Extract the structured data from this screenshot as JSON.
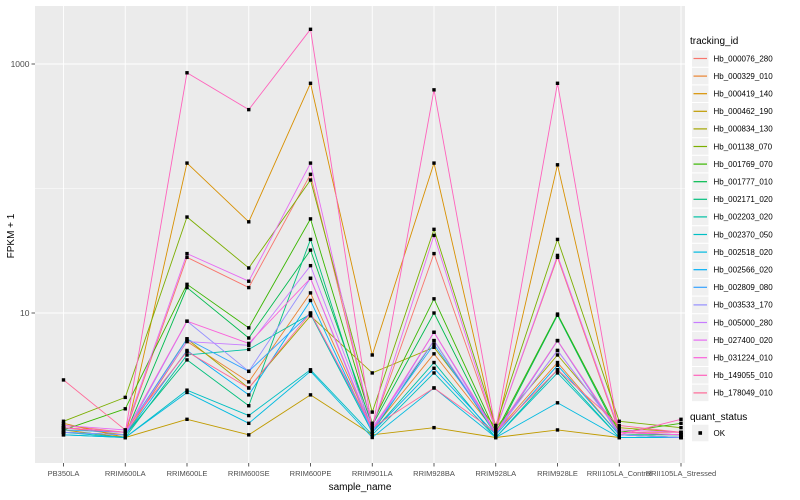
{
  "chart_data": {
    "type": "line",
    "title": "",
    "xlabel": "sample_name",
    "ylabel": "FPKM + 1",
    "y_scale": "log10",
    "ylim": [
      0.93,
      2400
    ],
    "y_major_ticks": [
      {
        "value": 10,
        "label": "10"
      },
      {
        "value": 1000,
        "label": "1000"
      }
    ],
    "y_minor_ticks": [
      1,
      100
    ],
    "grid": true,
    "legend_position": "right",
    "categories": [
      "PB350LA",
      "RRIM600LA",
      "RRIM600LE",
      "RRIM600SE",
      "RRIM600PE",
      "RRIM901LA",
      "RRIM928BA",
      "RRIM928LA",
      "RRIM928LE",
      "RRII105LA_Control",
      "RRII105LA_Stressed"
    ],
    "series": [
      {
        "name": "Hb_000076_280",
        "color": "#F8766D",
        "values": [
          1.25,
          1.1,
          28,
          16,
          130,
          1.2,
          30,
          1.15,
          28,
          1.1,
          1.1
        ]
      },
      {
        "name": "Hb_000329_010",
        "color": "#EA8331",
        "values": [
          1.2,
          1.05,
          5.9,
          2.8,
          14.5,
          1.15,
          4.7,
          1.1,
          4.0,
          1.05,
          1.0
        ]
      },
      {
        "name": "Hb_000419_140",
        "color": "#D89000",
        "values": [
          1.3,
          1.0,
          160,
          54,
          700,
          4.6,
          160,
          1.1,
          155,
          1.1,
          1.05
        ]
      },
      {
        "name": "Hb_000462_190",
        "color": "#C09B00",
        "values": [
          1.15,
          1.0,
          1.4,
          1.05,
          2.2,
          1.05,
          1.2,
          1.0,
          1.15,
          1.0,
          1.0
        ]
      },
      {
        "name": "Hb_000834_130",
        "color": "#A3A500",
        "values": [
          1.2,
          1.1,
          6.2,
          2.5,
          9.5,
          3.3,
          5.3,
          1.2,
          4.6,
          1.2,
          1.1
        ]
      },
      {
        "name": "Hb_001138_070",
        "color": "#7CAE00",
        "values": [
          1.35,
          2.1,
          59,
          23,
          117,
          1.6,
          47,
          1.25,
          39,
          1.35,
          1.2
        ]
      },
      {
        "name": "Hb_001769_070",
        "color": "#39B600",
        "values": [
          1.15,
          1.7,
          17,
          7.6,
          57,
          1.3,
          13,
          1.1,
          9.8,
          1.1,
          1.3
        ]
      },
      {
        "name": "Hb_001777_010",
        "color": "#00BB4E",
        "values": [
          1.1,
          1.05,
          16,
          6.3,
          32,
          1.25,
          10,
          1.05,
          9.6,
          1.05,
          1.05
        ]
      },
      {
        "name": "Hb_002171_020",
        "color": "#00BF7D",
        "values": [
          1.1,
          1.05,
          4.2,
          1.8,
          39,
          1.1,
          6.0,
          1.05,
          6.0,
          1.05,
          1.0
        ]
      },
      {
        "name": "Hb_002203_020",
        "color": "#00C1A3",
        "values": [
          1.05,
          1.0,
          4.6,
          5.1,
          9.8,
          1.1,
          4.0,
          1.0,
          3.5,
          1.0,
          1.0
        ]
      },
      {
        "name": "Hb_002370_050",
        "color": "#00BFC4",
        "values": [
          1.1,
          1.0,
          2.4,
          1.5,
          3.5,
          1.05,
          3.3,
          1.0,
          3.3,
          1.0,
          1.0
        ]
      },
      {
        "name": "Hb_002518_020",
        "color": "#00BAE0",
        "values": [
          1.05,
          1.0,
          2.3,
          1.3,
          3.4,
          1.0,
          2.5,
          1.0,
          1.9,
          1.0,
          1.0
        ]
      },
      {
        "name": "Hb_002566_020",
        "color": "#00B0F6",
        "values": [
          1.1,
          1.05,
          5.0,
          2.2,
          12.6,
          1.1,
          3.6,
          1.05,
          3.8,
          1.05,
          1.0
        ]
      },
      {
        "name": "Hb_002809_080",
        "color": "#35A2FF",
        "values": [
          1.15,
          1.1,
          6.2,
          3.4,
          10,
          1.15,
          5.6,
          1.1,
          5.0,
          1.1,
          1.05
        ]
      },
      {
        "name": "Hb_003533_170",
        "color": "#9590FF",
        "values": [
          1.1,
          1.05,
          8.6,
          3.4,
          19,
          1.1,
          7.0,
          1.05,
          6.0,
          1.05,
          1.0
        ]
      },
      {
        "name": "Hb_005000_280",
        "color": "#C77CFF",
        "values": [
          1.2,
          1.1,
          5.9,
          5.5,
          24,
          1.2,
          6.0,
          1.1,
          5.0,
          1.1,
          1.05
        ]
      },
      {
        "name": "Hb_027400_020",
        "color": "#E76BF3",
        "values": [
          1.25,
          1.15,
          30,
          18,
          160,
          1.2,
          42,
          1.15,
          29,
          1.15,
          1.1
        ]
      },
      {
        "name": "Hb_031224_010",
        "color": "#FA62DB",
        "values": [
          1.2,
          1.1,
          8.6,
          5.7,
          19,
          1.15,
          7.0,
          1.1,
          6.0,
          1.1,
          1.05
        ]
      },
      {
        "name": "Hb_149055_010",
        "color": "#FF62BC",
        "values": [
          1.2,
          1.1,
          850,
          430,
          1900,
          1.15,
          620,
          1.15,
          700,
          1.05,
          1.4
        ]
      },
      {
        "name": "Hb_178049_010",
        "color": "#FF6A98",
        "values": [
          2.9,
          1.15,
          4.9,
          2.5,
          10,
          1.2,
          2.5,
          1.1,
          3.5,
          1.25,
          1.1
        ]
      }
    ],
    "legend": {
      "tracking_title": "tracking_id",
      "quant_title": "quant_status",
      "quant_label": "OK"
    },
    "style": {
      "panel_bg": "#EBEBEB",
      "grid_color": "#FFFFFF",
      "point_color": "#000000",
      "tick_text_color": "#4D4D4D",
      "axis_title_color": "#000000",
      "legend_key_bg": "#F0F0F0"
    }
  }
}
